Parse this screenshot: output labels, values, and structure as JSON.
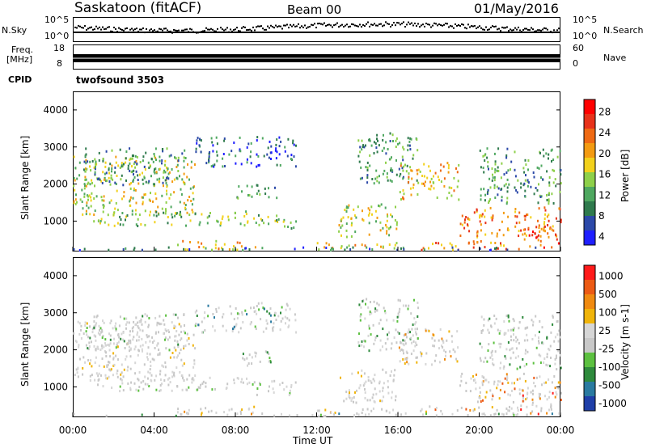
{
  "header": {
    "site": "Saskatoon (fitACF)",
    "beam": "Beam 00",
    "date": "01/May/2016"
  },
  "top_panels": {
    "nsky_label": "N.Sky",
    "nsky_ticks": [
      "10^5",
      "10^0"
    ],
    "nsearch_label": "N.Search",
    "nsearch_ticks": [
      "10^5",
      "10^0"
    ],
    "freq_label_1": "Freq.",
    "freq_label_2": "[MHz]",
    "freq_ticks": [
      "18",
      "8"
    ],
    "nave_label": "Nave",
    "nave_ticks": [
      "60",
      "0"
    ],
    "cpid_label": "CPID",
    "cpid_value": "twofsound 3503"
  },
  "colors": {
    "power": [
      "#1f1fff",
      "#2c49a8",
      "#2f7a4d",
      "#4fa860",
      "#8ed04a",
      "#f2d11c",
      "#f39b12",
      "#ef6a14",
      "#e8321a",
      "#ff0000"
    ],
    "velocity": [
      "#1f3fa8",
      "#2a7aa0",
      "#2e8a3c",
      "#5cc040",
      "#c8c8c8",
      "#d6d6d6",
      "#f0b40a",
      "#f08a10",
      "#ec5a14",
      "#ff1a1a"
    ]
  },
  "chart_data": [
    {
      "type": "heatmap",
      "title": "Power",
      "xlabel": "",
      "ylabel": "Slant Range [km]",
      "x_ticks": [
        "00:00",
        "04:00",
        "08:00",
        "12:00",
        "16:00",
        "20:00",
        "00:00"
      ],
      "xlim_hours": [
        0,
        24
      ],
      "ylim": [
        180,
        4500
      ],
      "y_ticks": [
        1000,
        2000,
        3000,
        4000
      ],
      "colorbar_label": "Power [dB]",
      "colorbar_ticks": [
        "28",
        "24",
        "20",
        "16",
        "12",
        "8",
        "4"
      ],
      "colorbar_range": [
        0,
        30
      ]
    },
    {
      "type": "heatmap",
      "title": "Velocity",
      "xlabel": "Time UT",
      "ylabel": "Slant Range [km]",
      "x_ticks": [
        "00:00",
        "04:00",
        "08:00",
        "12:00",
        "16:00",
        "20:00",
        "00:00"
      ],
      "xlim_hours": [
        0,
        24
      ],
      "ylim": [
        180,
        4500
      ],
      "y_ticks": [
        1000,
        2000,
        3000,
        4000
      ],
      "colorbar_label": "Velocity [m s-1]",
      "colorbar_ticks": [
        "1000",
        "500",
        "100",
        "25",
        "-25",
        "-100",
        "-500",
        "-1000"
      ]
    }
  ]
}
